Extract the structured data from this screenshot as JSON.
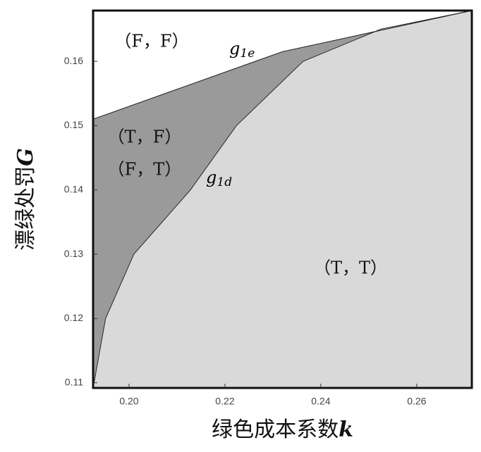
{
  "chart_data": {
    "type": "region",
    "x_label": {
      "text": "绿色成本系数",
      "var": "k"
    },
    "y_label": {
      "text": "漂绿处罚",
      "var": "G"
    },
    "xlim": [
      0.1925,
      0.2715
    ],
    "ylim": [
      0.1092,
      0.1679
    ],
    "xticks": [
      {
        "value": 0.2,
        "label": "0.20"
      },
      0.22,
      0.24,
      0.26
    ],
    "yticks": [
      0.11,
      0.12,
      0.13,
      0.14,
      0.15,
      0.16
    ],
    "curves": [
      {
        "name": "g",
        "sub": "1e",
        "x": [
          0.1925,
          0.232,
          0.2715
        ],
        "y": [
          0.151,
          0.1615,
          0.1679
        ]
      },
      {
        "name": "g",
        "sub": "1d",
        "x": [
          0.1925,
          0.1951,
          0.201,
          0.2128,
          0.2224,
          0.2363,
          0.2525,
          0.2715
        ],
        "y": [
          0.1092,
          0.12,
          0.13,
          0.14,
          0.15,
          0.16,
          0.165,
          0.1679
        ]
      }
    ],
    "regions": [
      {
        "labels": [
          "（F，F）"
        ],
        "color": "#555555"
      },
      {
        "labels": [
          "（T，F）",
          "（F，T）"
        ],
        "color": "#9a9a9a"
      },
      {
        "labels": [
          "（T，T）"
        ],
        "color": "#d9d9d9"
      }
    ]
  }
}
